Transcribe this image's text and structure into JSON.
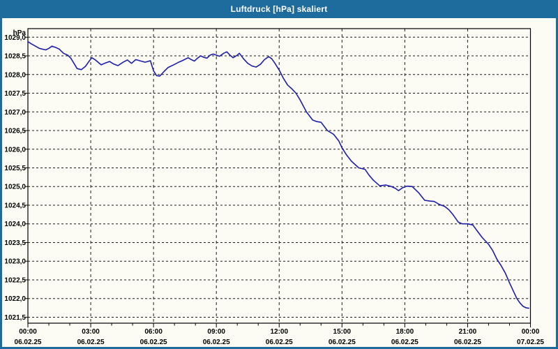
{
  "window": {
    "title": "Luftdruck [hPa] skaliert"
  },
  "colors": {
    "titlebar_bg": "#1d6c9d",
    "frame_border": "#1d6c9d",
    "content_bg": "#fcfcf4",
    "plot_border": "#000000",
    "gridline": "#1a1a1a",
    "tick_text": "#000000",
    "line": "#1c1cac"
  },
  "chart_data": {
    "type": "line",
    "title": "Luftdruck [hPa] skaliert",
    "y_unit": "hPa",
    "grid": true,
    "legend": "none",
    "ylim": [
      1021.34,
      1029.23
    ],
    "xlim_hours": [
      0,
      24
    ],
    "x_minor_step_hours": 1,
    "y_ticks": [
      {
        "value": 1029.0,
        "label": "1029,0"
      },
      {
        "value": 1028.5,
        "label": "1028,5"
      },
      {
        "value": 1028.0,
        "label": "1028,0"
      },
      {
        "value": 1027.5,
        "label": "1027,5"
      },
      {
        "value": 1027.0,
        "label": "1027,0"
      },
      {
        "value": 1026.5,
        "label": "1026,5"
      },
      {
        "value": 1026.0,
        "label": "1026,0"
      },
      {
        "value": 1025.5,
        "label": "1025,5"
      },
      {
        "value": 1025.0,
        "label": "1025,0"
      },
      {
        "value": 1024.5,
        "label": "1024,5"
      },
      {
        "value": 1024.0,
        "label": "1024,0"
      },
      {
        "value": 1023.5,
        "label": "1023,5"
      },
      {
        "value": 1023.0,
        "label": "1023,0"
      },
      {
        "value": 1022.5,
        "label": "1022,5"
      },
      {
        "value": 1022.0,
        "label": "1022,0"
      },
      {
        "value": 1021.5,
        "label": "1021,5"
      }
    ],
    "x_ticks": [
      {
        "hour": 0,
        "time": "00:00",
        "date": "06.02.25"
      },
      {
        "hour": 3,
        "time": "03:00",
        "date": "06.02.25"
      },
      {
        "hour": 6,
        "time": "06:00",
        "date": "06.02.25"
      },
      {
        "hour": 9,
        "time": "09:00",
        "date": "06.02.25"
      },
      {
        "hour": 12,
        "time": "12:00",
        "date": "06.02.25"
      },
      {
        "hour": 15,
        "time": "15:00",
        "date": "06.02.25"
      },
      {
        "hour": 18,
        "time": "18:00",
        "date": "06.02.25"
      },
      {
        "hour": 21,
        "time": "21:00",
        "date": "06.02.25"
      },
      {
        "hour": 24,
        "time": "00:00",
        "date": "07.02.25"
      }
    ],
    "series": [
      {
        "name": "Luftdruck [hPa]",
        "color": "#1c1cac",
        "points_hour_value": [
          [
            0.0,
            1028.88
          ],
          [
            0.17,
            1028.82
          ],
          [
            0.33,
            1028.77
          ],
          [
            0.55,
            1028.7
          ],
          [
            0.85,
            1028.66
          ],
          [
            1.0,
            1028.7
          ],
          [
            1.15,
            1028.76
          ],
          [
            1.35,
            1028.72
          ],
          [
            1.5,
            1028.68
          ],
          [
            1.7,
            1028.57
          ],
          [
            1.9,
            1028.52
          ],
          [
            2.05,
            1028.44
          ],
          [
            2.2,
            1028.3
          ],
          [
            2.35,
            1028.16
          ],
          [
            2.55,
            1028.13
          ],
          [
            2.75,
            1028.22
          ],
          [
            2.9,
            1028.34
          ],
          [
            3.05,
            1028.45
          ],
          [
            3.2,
            1028.4
          ],
          [
            3.5,
            1028.26
          ],
          [
            3.7,
            1028.31
          ],
          [
            3.9,
            1028.35
          ],
          [
            4.1,
            1028.28
          ],
          [
            4.3,
            1028.24
          ],
          [
            4.55,
            1028.33
          ],
          [
            4.75,
            1028.39
          ],
          [
            4.95,
            1028.3
          ],
          [
            5.15,
            1028.4
          ],
          [
            5.4,
            1028.36
          ],
          [
            5.6,
            1028.33
          ],
          [
            5.85,
            1028.37
          ],
          [
            6.0,
            1028.1
          ],
          [
            6.15,
            1027.97
          ],
          [
            6.3,
            1027.96
          ],
          [
            6.5,
            1028.08
          ],
          [
            6.7,
            1028.19
          ],
          [
            7.0,
            1028.27
          ],
          [
            7.2,
            1028.33
          ],
          [
            7.4,
            1028.38
          ],
          [
            7.65,
            1028.45
          ],
          [
            7.8,
            1028.4
          ],
          [
            7.95,
            1028.36
          ],
          [
            8.1,
            1028.44
          ],
          [
            8.25,
            1028.5
          ],
          [
            8.4,
            1028.46
          ],
          [
            8.55,
            1028.44
          ],
          [
            8.7,
            1028.52
          ],
          [
            8.85,
            1028.55
          ],
          [
            9.0,
            1028.52
          ],
          [
            9.15,
            1028.49
          ],
          [
            9.35,
            1028.57
          ],
          [
            9.5,
            1028.61
          ],
          [
            9.65,
            1028.52
          ],
          [
            9.8,
            1028.45
          ],
          [
            10.0,
            1028.52
          ],
          [
            10.1,
            1028.57
          ],
          [
            10.3,
            1028.42
          ],
          [
            10.5,
            1028.3
          ],
          [
            10.7,
            1028.23
          ],
          [
            10.9,
            1028.2
          ],
          [
            11.1,
            1028.27
          ],
          [
            11.3,
            1028.4
          ],
          [
            11.5,
            1028.48
          ],
          [
            11.65,
            1028.42
          ],
          [
            11.8,
            1028.3
          ],
          [
            12.0,
            1028.12
          ],
          [
            12.2,
            1027.9
          ],
          [
            12.4,
            1027.72
          ],
          [
            12.6,
            1027.62
          ],
          [
            12.8,
            1027.5
          ],
          [
            13.0,
            1027.32
          ],
          [
            13.3,
            1027.0
          ],
          [
            13.6,
            1026.78
          ],
          [
            13.8,
            1026.74
          ],
          [
            14.0,
            1026.72
          ],
          [
            14.3,
            1026.5
          ],
          [
            14.6,
            1026.4
          ],
          [
            14.85,
            1026.22
          ],
          [
            15.0,
            1026.04
          ],
          [
            15.2,
            1025.86
          ],
          [
            15.45,
            1025.68
          ],
          [
            15.8,
            1025.5
          ],
          [
            16.1,
            1025.46
          ],
          [
            16.3,
            1025.3
          ],
          [
            16.5,
            1025.17
          ],
          [
            16.8,
            1025.02
          ],
          [
            17.1,
            1025.04
          ],
          [
            17.35,
            1025.0
          ],
          [
            17.55,
            1024.95
          ],
          [
            17.7,
            1024.89
          ],
          [
            17.9,
            1024.97
          ],
          [
            18.1,
            1025.01
          ],
          [
            18.35,
            1025.0
          ],
          [
            18.65,
            1024.84
          ],
          [
            18.95,
            1024.63
          ],
          [
            19.2,
            1024.61
          ],
          [
            19.4,
            1024.6
          ],
          [
            19.65,
            1024.52
          ],
          [
            19.9,
            1024.47
          ],
          [
            20.1,
            1024.38
          ],
          [
            20.3,
            1024.25
          ],
          [
            20.55,
            1024.05
          ],
          [
            20.75,
            1024.0
          ],
          [
            21.0,
            1024.0
          ],
          [
            21.25,
            1023.97
          ],
          [
            21.5,
            1023.78
          ],
          [
            21.7,
            1023.63
          ],
          [
            22.0,
            1023.45
          ],
          [
            22.2,
            1023.28
          ],
          [
            22.4,
            1023.05
          ],
          [
            22.6,
            1022.88
          ],
          [
            22.8,
            1022.68
          ],
          [
            23.0,
            1022.42
          ],
          [
            23.2,
            1022.18
          ],
          [
            23.35,
            1022.0
          ],
          [
            23.5,
            1021.88
          ],
          [
            23.65,
            1021.79
          ],
          [
            23.8,
            1021.75
          ],
          [
            23.92,
            1021.74
          ]
        ]
      }
    ]
  }
}
